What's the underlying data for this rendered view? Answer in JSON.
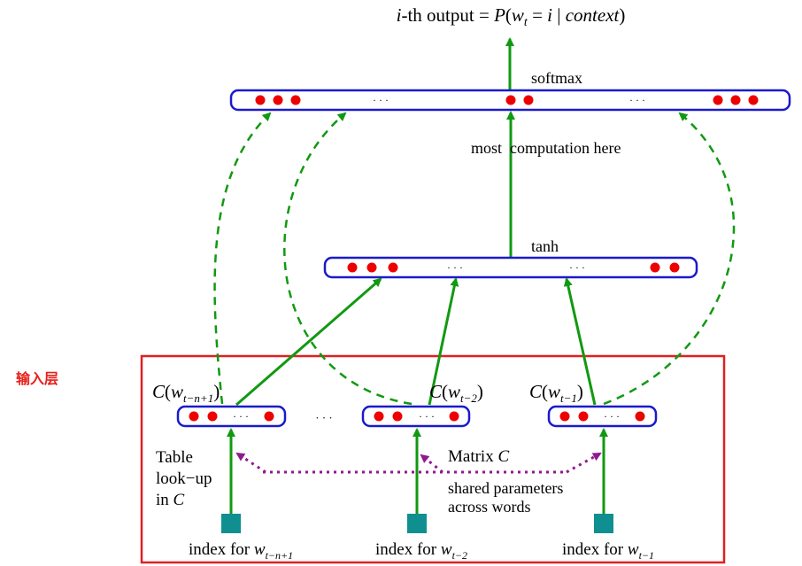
{
  "output_label": {
    "prefix": "i",
    "text1": "-th output = ",
    "func": "P",
    "open": "(",
    "w": "w",
    "w_sub": "t",
    "eq": " = ",
    "i": "i",
    "bar": " | ",
    "ctx": "context",
    "close": ")"
  },
  "softmax_label": "softmax",
  "most_computation_label": "most  computation here",
  "tanh_label": "tanh",
  "ellipsis": "· · ·",
  "input_section_label": "输入层",
  "embeddings": [
    {
      "C": "C",
      "open": "(",
      "w": "w",
      "sub": "t−n+1",
      "close": ")"
    },
    {
      "C": "C",
      "open": "(",
      "w": "w",
      "sub": "t−2",
      "close": ")"
    },
    {
      "C": "C",
      "open": "(",
      "w": "w",
      "sub": "t−1",
      "close": ")"
    }
  ],
  "indices": [
    {
      "prefix": "index for ",
      "w": "w",
      "sub": "t−n+1"
    },
    {
      "prefix": "index for ",
      "w": "w",
      "sub": "t−2"
    },
    {
      "prefix": "index for ",
      "w": "w",
      "sub": "t−1"
    }
  ],
  "table_lookup": {
    "line1": "Table",
    "line2": "look−up",
    "line3_prefix": "in ",
    "line3_C": "C"
  },
  "matrix_label": {
    "prefix": "Matrix ",
    "C": "C"
  },
  "shared_params": {
    "line1": "shared parameters",
    "line2": "across words"
  },
  "colors": {
    "box_border": "#1a1acd",
    "dot": "#ee0000",
    "arrow_green": "#119911",
    "dashed_green": "#119911",
    "dotted_purple": "#8e1a8e",
    "index_square": "#0f8f8f",
    "section_border": "#e02020",
    "section_label": "#e8201a"
  }
}
